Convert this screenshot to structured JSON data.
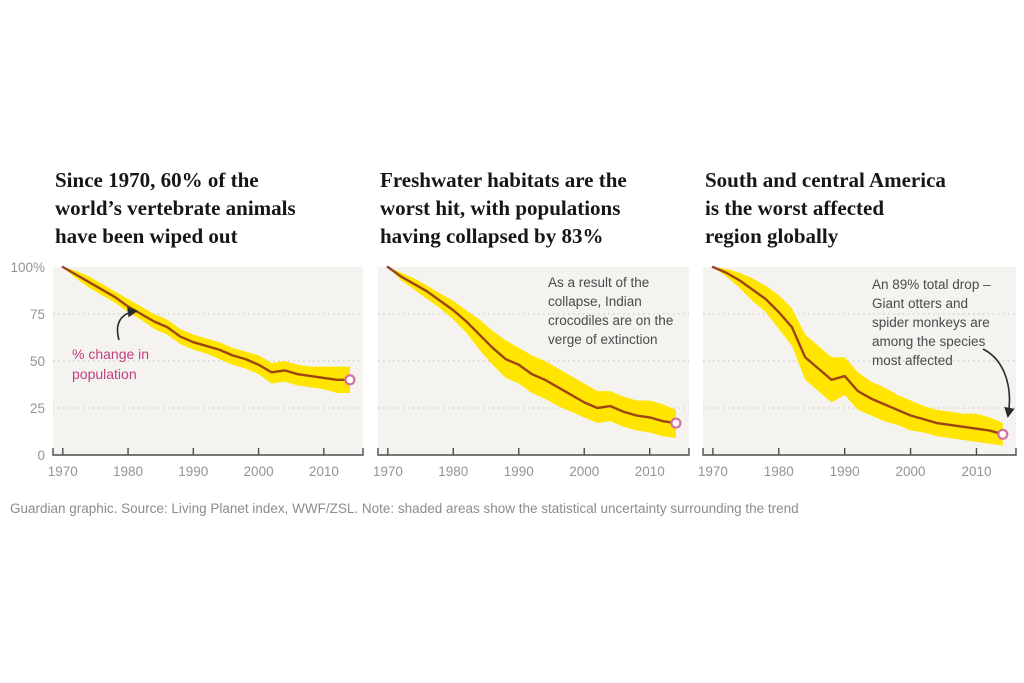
{
  "footer": {
    "text": "Guardian graphic. Source: Living Planet index, WWF/ZSL. Note: shaded areas show the statistical uncertainty surrounding the trend"
  },
  "colors": {
    "band": "#ffe500",
    "line": "#9d4512",
    "line_start": "#8f3a8c",
    "marker_stroke": "#d4709f",
    "plot_bg": "#f4f3f0",
    "grid": "#cbcbc7",
    "axis": "#4d4d4d",
    "tick_label": "#949494",
    "title": "#161616",
    "annotation": "#4a4a4a",
    "pink_label": "#c23f80"
  },
  "chart_data": [
    {
      "type": "line",
      "title": "Since 1970, 60% of the\nworld’s vertebrate animals\nhave been wiped out",
      "label": "% change in\npopulation",
      "x": [
        1970,
        1972,
        1974,
        1976,
        1978,
        1980,
        1982,
        1984,
        1986,
        1988,
        1990,
        1992,
        1994,
        1996,
        1998,
        2000,
        2002,
        2004,
        2006,
        2008,
        2010,
        2012,
        2014
      ],
      "series": [
        {
          "name": "% change in population",
          "values": [
            100,
            96,
            92,
            88,
            84,
            79,
            75,
            71,
            68,
            63,
            60,
            58,
            56,
            53,
            51,
            48,
            44,
            45,
            43,
            42,
            41,
            40,
            40
          ],
          "band_upper": [
            100,
            98,
            95,
            91,
            87,
            83,
            79,
            75,
            72,
            67,
            64,
            62,
            60,
            57,
            55,
            53,
            49,
            50,
            48,
            47,
            47,
            47,
            47
          ],
          "band_lower": [
            100,
            94,
            89,
            85,
            81,
            76,
            72,
            67,
            64,
            59,
            56,
            54,
            51,
            48,
            46,
            43,
            38,
            39,
            37,
            36,
            35,
            33,
            33
          ]
        }
      ],
      "xlim": [
        1968.5,
        2016
      ],
      "ylim": [
        0,
        100
      ],
      "x_ticks": [
        1970,
        1980,
        1990,
        2000,
        2010
      ],
      "y_ticks": [
        {
          "label": "100%",
          "value": 100
        },
        {
          "label": "75",
          "value": 75
        },
        {
          "label": "50",
          "value": 50
        },
        {
          "label": "25",
          "value": 25
        },
        {
          "label": "0",
          "value": 0
        }
      ],
      "grid_values": [
        75,
        50,
        25
      ],
      "end_value": 40
    },
    {
      "type": "line",
      "title": "Freshwater habitats are the\nworst hit, with populations\nhaving collapsed by 83%",
      "annotation": "As a result of the\ncollapse, Indian\ncrocodiles are on the\nverge of extinction",
      "x": [
        1970,
        1972,
        1974,
        1976,
        1978,
        1980,
        1982,
        1984,
        1986,
        1988,
        1990,
        1992,
        1994,
        1996,
        1998,
        2000,
        2002,
        2004,
        2006,
        2008,
        2010,
        2012,
        2014
      ],
      "series": [
        {
          "name": "% change in population",
          "values": [
            100,
            95,
            91,
            87,
            82,
            77,
            71,
            64,
            57,
            51,
            48,
            43,
            40,
            36,
            32,
            28,
            25,
            26,
            23,
            21,
            20,
            18,
            17
          ],
          "band_upper": [
            100,
            97,
            94,
            90,
            86,
            82,
            77,
            72,
            66,
            61,
            57,
            53,
            50,
            46,
            42,
            38,
            34,
            34,
            31,
            29,
            29,
            27,
            24
          ],
          "band_lower": [
            100,
            93,
            88,
            83,
            78,
            72,
            65,
            56,
            48,
            41,
            38,
            33,
            30,
            26,
            23,
            20,
            17,
            18,
            15,
            13,
            12,
            10,
            9
          ]
        }
      ],
      "xlim": [
        1968.5,
        2016
      ],
      "ylim": [
        0,
        100
      ],
      "x_ticks": [
        1970,
        1980,
        1990,
        2000,
        2010
      ],
      "y_ticks": [],
      "grid_values": [
        75,
        50,
        25
      ],
      "end_value": 17
    },
    {
      "type": "line",
      "title": "South and central America\nis the worst affected\nregion globally",
      "annotation": "An 89% total drop –\nGiant otters and\nspider monkeys are\namong the species\nmost affected",
      "x": [
        1970,
        1972,
        1974,
        1976,
        1978,
        1980,
        1982,
        1984,
        1986,
        1988,
        1990,
        1992,
        1994,
        1996,
        1998,
        2000,
        2002,
        2004,
        2006,
        2008,
        2010,
        2012,
        2014
      ],
      "series": [
        {
          "name": "% change in population",
          "values": [
            100,
            97,
            93,
            88,
            83,
            76,
            68,
            52,
            46,
            40,
            42,
            34,
            30,
            27,
            24,
            21,
            19,
            17,
            16,
            15,
            14,
            13,
            11
          ],
          "band_upper": [
            100,
            99,
            97,
            94,
            90,
            85,
            78,
            64,
            58,
            52,
            52,
            44,
            39,
            36,
            32,
            29,
            26,
            24,
            23,
            22,
            22,
            20,
            17
          ],
          "band_lower": [
            100,
            95,
            89,
            82,
            76,
            67,
            58,
            40,
            34,
            28,
            32,
            24,
            21,
            18,
            16,
            13,
            12,
            10,
            9,
            8,
            7,
            6,
            5
          ]
        }
      ],
      "xlim": [
        1968.5,
        2016
      ],
      "ylim": [
        0,
        100
      ],
      "x_ticks": [
        1970,
        1980,
        1990,
        2000,
        2010
      ],
      "y_ticks": [],
      "grid_values": [
        75,
        50,
        25
      ],
      "end_value": 11
    }
  ]
}
